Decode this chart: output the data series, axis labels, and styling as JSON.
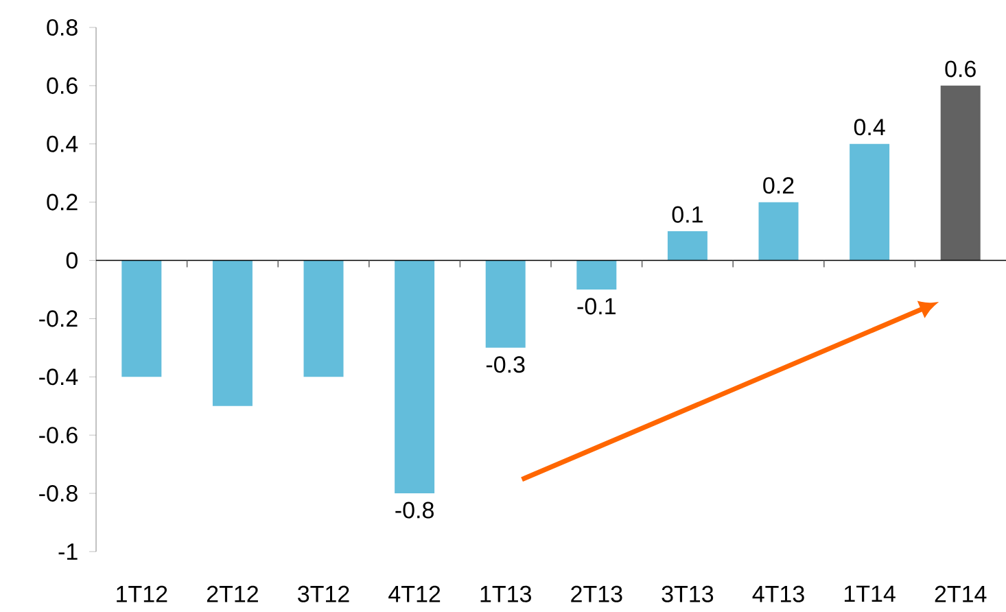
{
  "chart_data": {
    "type": "bar",
    "categories": [
      "1T12",
      "2T12",
      "3T12",
      "4T12",
      "1T13",
      "2T13",
      "3T13",
      "4T13",
      "1T14",
      "2T14"
    ],
    "values": [
      -0.4,
      -0.5,
      -0.4,
      -0.8,
      -0.3,
      -0.1,
      0.1,
      0.2,
      0.4,
      0.6
    ],
    "colors": [
      "#63bddb",
      "#63bddb",
      "#63bddb",
      "#63bddb",
      "#63bddb",
      "#63bddb",
      "#63bddb",
      "#63bddb",
      "#63bddb",
      "#626262"
    ],
    "value_labels": [
      null,
      null,
      null,
      "-0.8",
      "-0.3",
      "-0.1",
      "0.1",
      "0.2",
      "0.4",
      "0.6"
    ],
    "ylim": [
      -1,
      0.8
    ],
    "yticks": [
      -1,
      -0.8,
      -0.6,
      -0.4,
      -0.2,
      0,
      0.2,
      0.4,
      0.6,
      0.8
    ]
  }
}
